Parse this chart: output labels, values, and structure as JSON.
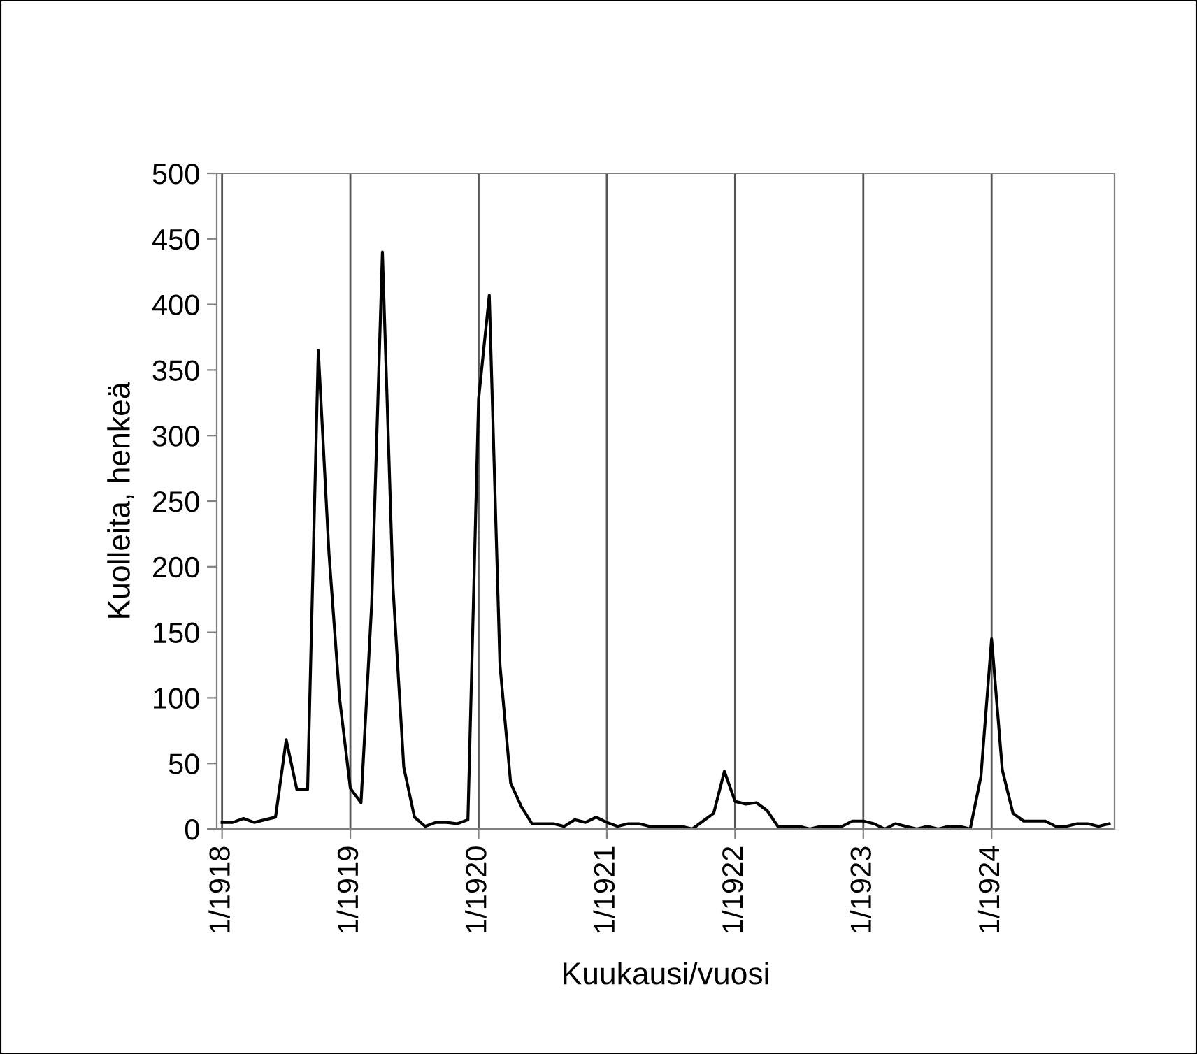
{
  "chart_data": {
    "type": "line",
    "xlabel": "Kuukausi/vuosi",
    "ylabel": "Kuolleita, henkeä",
    "categories": [
      "1/1918",
      null,
      null,
      null,
      null,
      null,
      null,
      null,
      null,
      null,
      null,
      null,
      "1/1919",
      null,
      null,
      null,
      null,
      null,
      null,
      null,
      null,
      null,
      null,
      null,
      "1/1920",
      null,
      null,
      null,
      null,
      null,
      null,
      null,
      null,
      null,
      null,
      null,
      "1/1921",
      null,
      null,
      null,
      null,
      null,
      null,
      null,
      null,
      null,
      null,
      null,
      "1/1922",
      null,
      null,
      null,
      null,
      null,
      null,
      null,
      null,
      null,
      null,
      null,
      "1/1923",
      null,
      null,
      null,
      null,
      null,
      null,
      null,
      null,
      null,
      null,
      null,
      "1/1924",
      null,
      null,
      null,
      null,
      null,
      null,
      null,
      null,
      null,
      null,
      null
    ],
    "series": [
      {
        "color": "#000000",
        "values": [
          5,
          5,
          8,
          5,
          7,
          9,
          68,
          30,
          30,
          365,
          210,
          99,
          31,
          20,
          172,
          440,
          183,
          47,
          9,
          2,
          5,
          5,
          4,
          7,
          328,
          407,
          125,
          35,
          17,
          4,
          4,
          4,
          2,
          7,
          5,
          9,
          5,
          2,
          4,
          4,
          2,
          2,
          2,
          2,
          0,
          6,
          12,
          44,
          21,
          19,
          20,
          14,
          2,
          2,
          2,
          0,
          2,
          2,
          2,
          6,
          6,
          4,
          0,
          4,
          2,
          0,
          2,
          0,
          2,
          2,
          0,
          40,
          145,
          45,
          12,
          6,
          6,
          6,
          2,
          2,
          4,
          4,
          2,
          4
        ]
      }
    ],
    "ylim": [
      0,
      500
    ],
    "yticks": [
      0,
      50,
      100,
      150,
      200,
      250,
      300,
      350,
      400,
      450,
      500
    ],
    "grid": "x",
    "legend": false,
    "marker": "none",
    "line_style": "solid"
  }
}
